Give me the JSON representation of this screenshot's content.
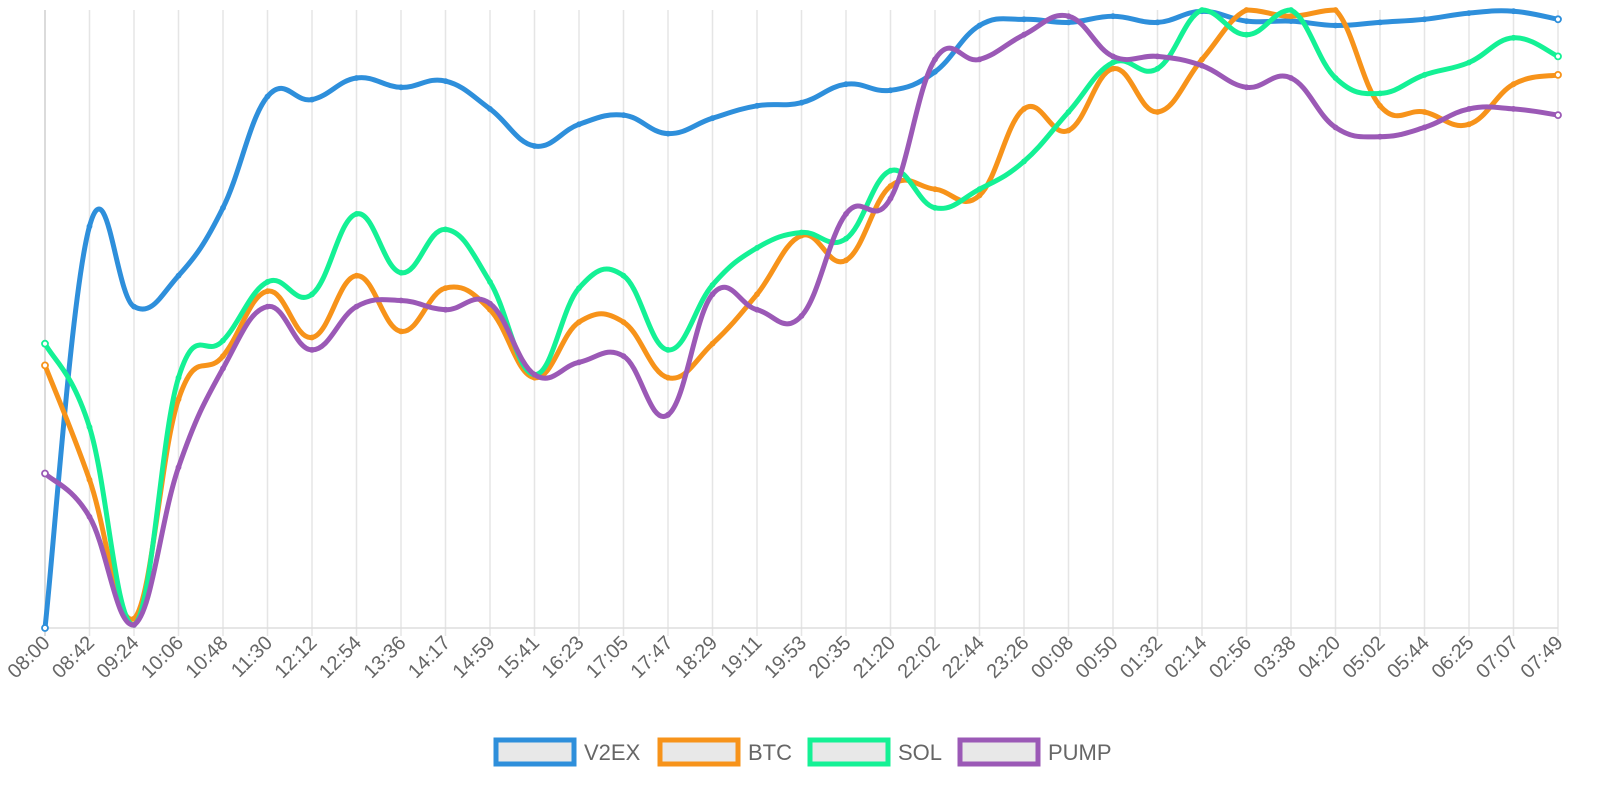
{
  "chart_data": {
    "type": "line",
    "title": "",
    "xlabel": "",
    "ylabel": "",
    "grid": "vertical",
    "legend_position": "bottom-center",
    "ylim": [
      0,
      100
    ],
    "categories": [
      "08:00",
      "08:42",
      "09:24",
      "10:06",
      "10:48",
      "11:30",
      "12:12",
      "12:54",
      "13:36",
      "14:17",
      "14:59",
      "15:41",
      "16:23",
      "17:05",
      "17:47",
      "18:29",
      "19:11",
      "19:53",
      "20:35",
      "21:20",
      "22:02",
      "22:44",
      "23:26",
      "00:08",
      "00:50",
      "01:32",
      "02:14",
      "02:56",
      "03:38",
      "04:20",
      "05:02",
      "05:44",
      "06:25",
      "07:07",
      "07:49"
    ],
    "series": [
      {
        "name": "V2EX",
        "color": "#2e8fdb",
        "values": [
          0.0,
          65.0,
          52.0,
          57.0,
          68.0,
          86.0,
          85.5,
          89.0,
          87.5,
          88.5,
          84.0,
          78.0,
          81.5,
          83.0,
          80.0,
          82.5,
          84.5,
          85.0,
          88.0,
          87.0,
          90.0,
          97.5,
          98.5,
          98.0,
          99.0,
          98.0,
          99.8,
          98.2,
          98.2,
          97.5,
          98.0,
          98.5,
          99.5,
          99.8,
          98.5
        ]
      },
      {
        "name": "BTC",
        "color": "#f7931a",
        "values": [
          42.5,
          24.0,
          1.5,
          37.0,
          44.0,
          54.5,
          47.0,
          57.0,
          48.0,
          55.0,
          51.5,
          40.5,
          49.5,
          49.5,
          40.5,
          46.0,
          54.0,
          63.5,
          59.5,
          71.5,
          71.0,
          70.0,
          84.0,
          80.5,
          90.5,
          83.5,
          92.0,
          100.0,
          99.0,
          100.0,
          84.5,
          83.5,
          81.5,
          88.0,
          89.5
        ]
      },
      {
        "name": "SOL",
        "color": "#14f195",
        "values": [
          46.0,
          32.5,
          0.5,
          40.5,
          46.5,
          56.0,
          54.0,
          67.0,
          57.5,
          64.5,
          56.0,
          41.0,
          55.0,
          57.0,
          45.0,
          55.5,
          61.5,
          64.0,
          63.0,
          74.0,
          68.0,
          71.0,
          75.5,
          83.5,
          91.5,
          90.5,
          100.0,
          96.0,
          100.0,
          89.0,
          86.5,
          89.5,
          91.5,
          95.5,
          92.5
        ]
      },
      {
        "name": "PUMP",
        "color": "#9b59b6",
        "values": [
          25.0,
          18.0,
          0.5,
          26.0,
          42.0,
          52.0,
          45.0,
          52.0,
          53.0,
          51.5,
          52.5,
          41.0,
          43.0,
          44.0,
          34.5,
          54.0,
          51.5,
          50.5,
          67.0,
          69.5,
          92.0,
          92.0,
          96.0,
          99.0,
          92.5,
          92.5,
          91.0,
          87.5,
          89.0,
          81.0,
          79.5,
          81.0,
          84.0,
          84.0,
          83.0
        ]
      }
    ]
  }
}
